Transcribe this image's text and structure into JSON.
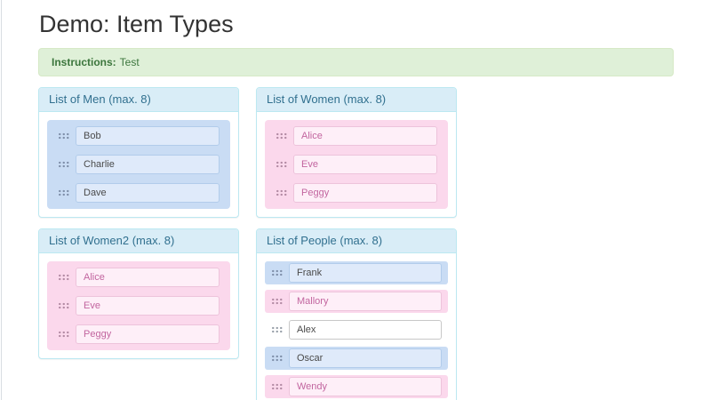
{
  "page": {
    "title": "Demo: Item Types"
  },
  "instructions": {
    "label": "Instructions:",
    "text": "Test"
  },
  "lists": [
    {
      "title": "List of Men (max. 8)",
      "list_type": "men",
      "items": [
        {
          "name": "Bob",
          "gender": "male"
        },
        {
          "name": "Charlie",
          "gender": "male"
        },
        {
          "name": "Dave",
          "gender": "male"
        }
      ]
    },
    {
      "title": "List of Women (max. 8)",
      "list_type": "women",
      "items": [
        {
          "name": "Alice",
          "gender": "female"
        },
        {
          "name": "Eve",
          "gender": "female"
        },
        {
          "name": "Peggy",
          "gender": "female"
        }
      ]
    },
    {
      "title": "List of Women2 (max. 8)",
      "list_type": "women",
      "items": [
        {
          "name": "Alice",
          "gender": "female"
        },
        {
          "name": "Eve",
          "gender": "female"
        },
        {
          "name": "Peggy",
          "gender": "female"
        }
      ]
    },
    {
      "title": "List of People (max. 8)",
      "list_type": "people",
      "items": [
        {
          "name": "Frank",
          "gender": "male"
        },
        {
          "name": "Mallory",
          "gender": "female"
        },
        {
          "name": "Alex",
          "gender": "neutral"
        },
        {
          "name": "Oscar",
          "gender": "male"
        },
        {
          "name": "Wendy",
          "gender": "female"
        }
      ]
    }
  ],
  "colors": {
    "panel_heading_bg": "#d9edf7",
    "panel_heading_text": "#31708f",
    "panel_border": "#bce8f1",
    "alert_bg": "#dff0d8",
    "alert_border": "#d6e9c6",
    "alert_text": "#3c763d",
    "male_item_bg": "#c9dcf4",
    "male_input_bg": "#dfeafa",
    "male_input_border": "#b2cceb",
    "female_item_bg": "#fbd8ec",
    "female_input_bg": "#feeff8",
    "female_input_border": "#edc3db",
    "female_text": "#c2659f",
    "neutral_input_border": "#c8c8c8",
    "body_text": "#4a4a4a",
    "title_text": "#333333"
  }
}
